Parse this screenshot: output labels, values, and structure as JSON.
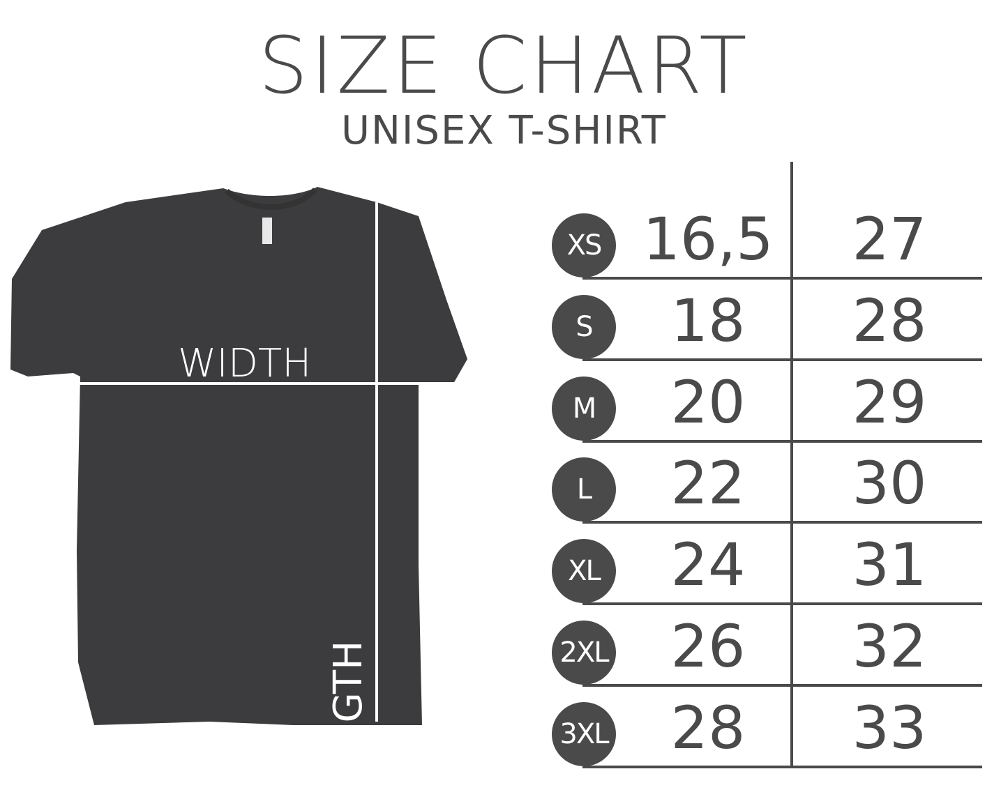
{
  "header": {
    "title": "SIZE CHART",
    "subtitle": "UNISEX T-SHIRT"
  },
  "shirt": {
    "width_label": "WIDTH",
    "length_label": "LENGTH",
    "color": "#3c3c3e"
  },
  "chart_data": {
    "type": "table",
    "title": "SIZE CHART",
    "subtitle": "UNISEX T-SHIRT",
    "columns": [
      "WIDTH",
      "LENGTH"
    ],
    "rows": [
      {
        "size": "XS",
        "width": "16,5",
        "length": "27"
      },
      {
        "size": "S",
        "width": "18",
        "length": "28"
      },
      {
        "size": "M",
        "width": "20",
        "length": "29"
      },
      {
        "size": "L",
        "width": "22",
        "length": "30"
      },
      {
        "size": "XL",
        "width": "24",
        "length": "31"
      },
      {
        "size": "2XL",
        "width": "26",
        "length": "32"
      },
      {
        "size": "3XL",
        "width": "28",
        "length": "33"
      }
    ]
  }
}
